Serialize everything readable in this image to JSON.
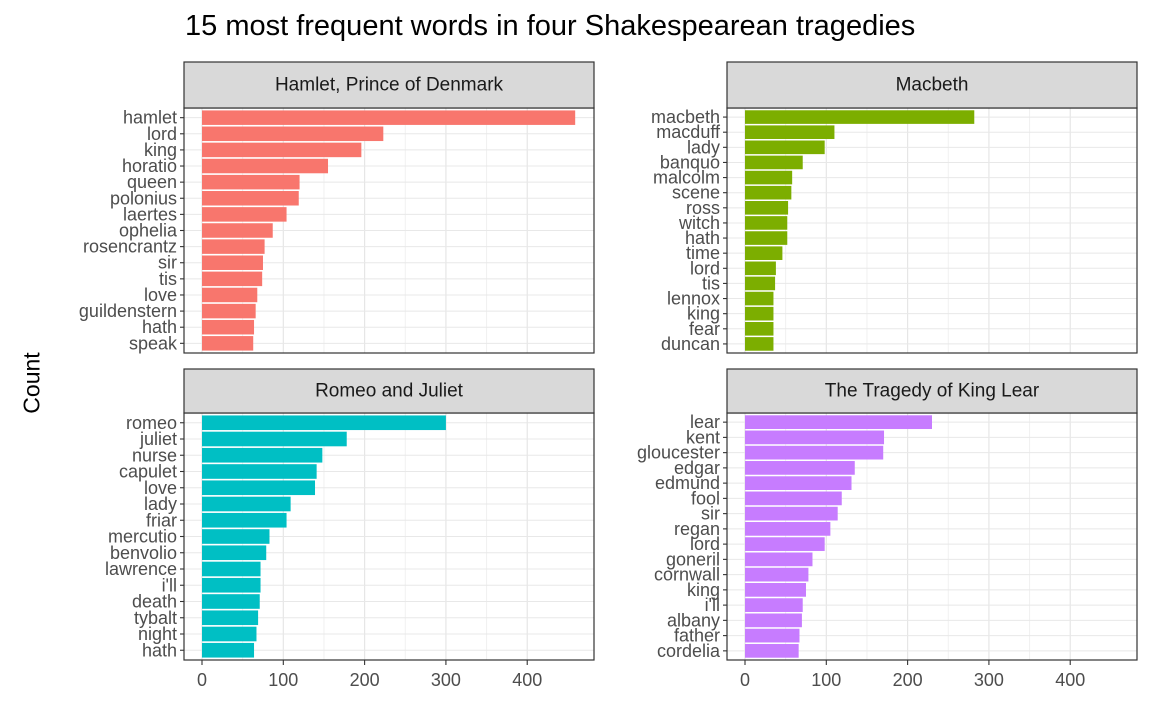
{
  "chart_data": {
    "type": "bar",
    "title": "15 most frequent words in four Shakespearean tragedies",
    "xlabel": "",
    "ylabel": "Count",
    "value_axis": {
      "range": [
        0,
        460
      ],
      "ticks": [
        0,
        100,
        200,
        300,
        400
      ]
    },
    "grid": true,
    "facets": [
      {
        "title": "Hamlet, Prince of Denmark",
        "color": "#F8766D",
        "categories": [
          "hamlet",
          "lord",
          "king",
          "horatio",
          "queen",
          "polonius",
          "laertes",
          "ophelia",
          "rosencrantz",
          "sir",
          "tis",
          "love",
          "guildenstern",
          "hath",
          "speak"
        ],
        "values": [
          459,
          223,
          196,
          155,
          120,
          119,
          104,
          87,
          77,
          75,
          74,
          68,
          66,
          64,
          63
        ]
      },
      {
        "title": "Macbeth",
        "color": "#7CAE00",
        "categories": [
          "macbeth",
          "macduff",
          "lady",
          "banquo",
          "malcolm",
          "scene",
          "ross",
          "witch",
          "hath",
          "time",
          "lord",
          "tis",
          "lennox",
          "king",
          "fear",
          "duncan"
        ],
        "values": [
          282,
          110,
          98,
          71,
          58,
          57,
          53,
          52,
          52,
          46,
          38,
          37,
          35,
          35,
          35,
          35
        ]
      },
      {
        "title": "Romeo and Juliet",
        "color": "#00BFC4",
        "categories": [
          "romeo",
          "juliet",
          "nurse",
          "capulet",
          "love",
          "lady",
          "friar",
          "mercutio",
          "benvolio",
          "lawrence",
          "i'll",
          "death",
          "tybalt",
          "night",
          "hath"
        ],
        "values": [
          300,
          178,
          148,
          141,
          139,
          109,
          104,
          83,
          79,
          72,
          72,
          71,
          69,
          67,
          64
        ]
      },
      {
        "title": "The Tragedy of King Lear",
        "color": "#C77CFF",
        "categories": [
          "lear",
          "kent",
          "gloucester",
          "edgar",
          "edmund",
          "fool",
          "sir",
          "regan",
          "lord",
          "goneril",
          "cornwall",
          "king",
          "i'll",
          "albany",
          "father",
          "cordelia"
        ],
        "values": [
          230,
          171,
          170,
          135,
          131,
          119,
          114,
          105,
          98,
          83,
          78,
          75,
          71,
          70,
          67,
          66
        ]
      }
    ]
  }
}
